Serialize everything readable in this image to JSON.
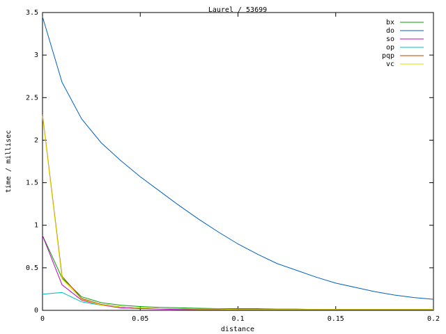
{
  "chart_data": {
    "type": "line",
    "title": "Laurel / 53699",
    "x_label": "distance",
    "y_label": "time / millisec",
    "x": [
      0,
      0.01,
      0.02,
      0.03,
      0.04,
      0.05,
      0.06,
      0.07,
      0.08,
      0.09,
      0.1,
      0.11,
      0.12,
      0.13,
      0.14,
      0.15,
      0.16,
      0.17,
      0.18,
      0.19,
      0.2
    ],
    "series": [
      {
        "name": "bx",
        "color": "#00a000",
        "values": [
          0.88,
          0.38,
          0.16,
          0.09,
          0.06,
          0.045,
          0.035,
          0.03,
          0.025,
          0.02,
          0.02,
          0.02,
          0.015,
          0.015,
          0.01,
          0.01,
          0.01,
          0.01,
          0.01,
          0.01,
          0.01
        ]
      },
      {
        "name": "do",
        "color": "#0060c0",
        "values": [
          3.45,
          2.68,
          2.25,
          1.97,
          1.76,
          1.57,
          1.4,
          1.23,
          1.07,
          0.92,
          0.78,
          0.66,
          0.55,
          0.47,
          0.39,
          0.32,
          0.27,
          0.22,
          0.18,
          0.15,
          0.13
        ]
      },
      {
        "name": "so",
        "color": "#c000c0",
        "values": [
          0.88,
          0.3,
          0.12,
          0.06,
          0.03,
          0.02,
          0.015,
          0.01,
          0.01,
          0.01,
          0.01,
          0.01,
          0.01,
          0.01,
          0.01,
          0.01,
          0.01,
          0.01,
          0.01,
          0.01,
          0.01
        ]
      },
      {
        "name": "op",
        "color": "#00c0c0",
        "values": [
          0.19,
          0.21,
          0.1,
          0.06,
          0.04,
          0.03,
          0.02,
          0.02,
          0.015,
          0.015,
          0.01,
          0.01,
          0.01,
          0.01,
          0.01,
          0.01,
          0.01,
          0.01,
          0.01,
          0.01,
          0.01
        ]
      },
      {
        "name": "pqp",
        "color": "#c04000",
        "values": [
          2.3,
          0.4,
          0.14,
          0.07,
          0.04,
          0.03,
          0.02,
          0.02,
          0.015,
          0.015,
          0.01,
          0.01,
          0.01,
          0.01,
          0.01,
          0.01,
          0.01,
          0.01,
          0.01,
          0.01,
          0.01
        ]
      },
      {
        "name": "vc",
        "color": "#e0e000",
        "values": [
          2.28,
          0.37,
          0.13,
          0.06,
          0.04,
          0.03,
          0.02,
          0.02,
          0.015,
          0.015,
          0.01,
          0.01,
          0.01,
          0.01,
          0.01,
          0.01,
          0.01,
          0.01,
          0.01,
          0.01,
          0.01
        ]
      }
    ],
    "xlim": [
      0,
      0.2
    ],
    "xticks": [
      0,
      0.05,
      0.1,
      0.15,
      0.2
    ],
    "ylim": [
      0,
      3.5
    ],
    "yticks": [
      0,
      0.5,
      1,
      1.5,
      2,
      2.5,
      3,
      3.5
    ],
    "legend": "top-right",
    "grid": false
  }
}
